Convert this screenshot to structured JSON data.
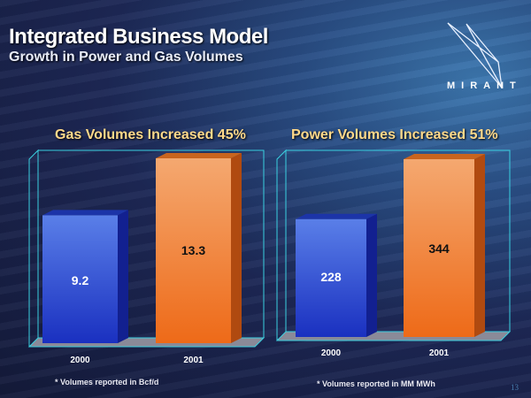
{
  "header": {
    "title": "Integrated Business Model",
    "subtitle": "Growth in Power and Gas Volumes"
  },
  "logo": {
    "text": "MIRANT"
  },
  "page_number": "13",
  "colors": {
    "bar_2000": "#2a4fd0",
    "bar_2001": "#f08030",
    "title": "#ffd98a",
    "frame": "#3ad0e0"
  },
  "chart_data": [
    {
      "type": "bar",
      "title": "Gas Volumes Increased 45%",
      "categories": [
        "2000",
        "2001"
      ],
      "values": [
        9.2,
        13.3
      ],
      "labels": [
        "9.2",
        "13.3"
      ],
      "ylim": [
        0,
        13.3
      ],
      "note": "* Volumes reported in Bcf/d"
    },
    {
      "type": "bar",
      "title": "Power Volumes Increased 51%",
      "categories": [
        "2000",
        "2001"
      ],
      "values": [
        228,
        344
      ],
      "labels": [
        "228",
        "344"
      ],
      "ylim": [
        0,
        344
      ],
      "note": "* Volumes reported in MM MWh"
    }
  ]
}
